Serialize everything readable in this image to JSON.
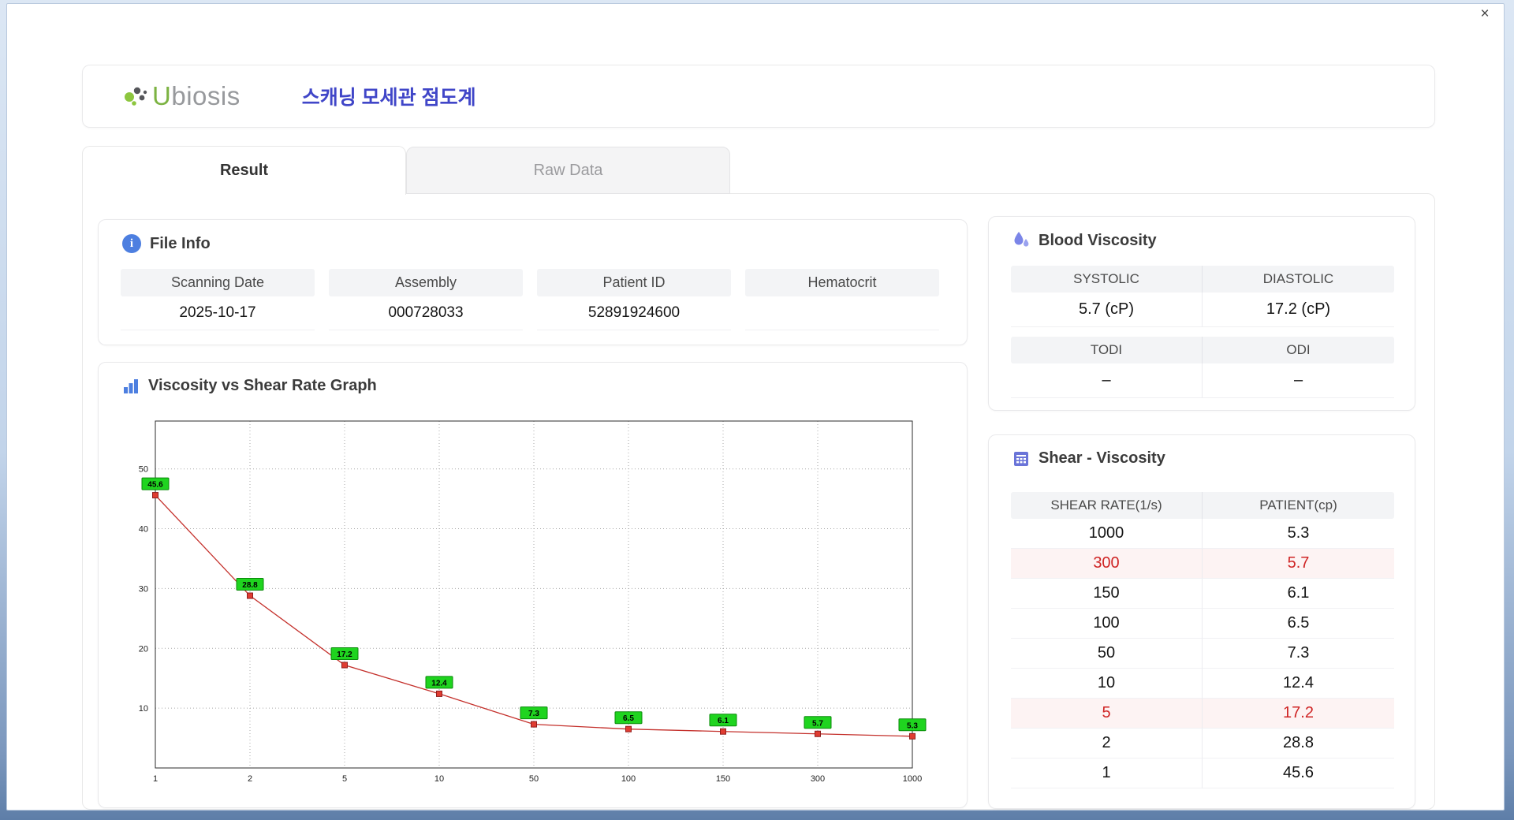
{
  "window": {
    "close_label": "×"
  },
  "header": {
    "logo_u": "U",
    "logo_rest": "biosis",
    "logo_text": "Ubiosis",
    "title": "스캐닝 모세관 점도계"
  },
  "tabs": [
    {
      "label": "Result",
      "active": true
    },
    {
      "label": "Raw Data",
      "active": false
    }
  ],
  "file_info": {
    "title": "File Info",
    "fields": [
      {
        "label": "Scanning Date",
        "value": "2025-10-17"
      },
      {
        "label": "Assembly",
        "value": "000728033"
      },
      {
        "label": "Patient ID",
        "value": "52891924600"
      },
      {
        "label": "Hematocrit",
        "value": ""
      }
    ]
  },
  "blood_viscosity": {
    "title": "Blood Viscosity",
    "systolic_label": "SYSTOLIC",
    "diastolic_label": "DIASTOLIC",
    "systolic_value": "5.7 (cP)",
    "diastolic_value": "17.2 (cP)",
    "todi_label": "TODI",
    "odi_label": "ODI",
    "todi_value": "–",
    "odi_value": "–"
  },
  "shear_viscosity": {
    "title": "Shear - Viscosity",
    "columns": [
      "SHEAR RATE(1/s)",
      "PATIENT(cp)"
    ],
    "rows": [
      {
        "shear_rate": "1000",
        "patient": "5.3",
        "highlight": false
      },
      {
        "shear_rate": "300",
        "patient": "5.7",
        "highlight": true
      },
      {
        "shear_rate": "150",
        "patient": "6.1",
        "highlight": false
      },
      {
        "shear_rate": "100",
        "patient": "6.5",
        "highlight": false
      },
      {
        "shear_rate": "50",
        "patient": "7.3",
        "highlight": false
      },
      {
        "shear_rate": "10",
        "patient": "12.4",
        "highlight": false
      },
      {
        "shear_rate": "5",
        "patient": "17.2",
        "highlight": true
      },
      {
        "shear_rate": "2",
        "patient": "28.8",
        "highlight": false
      },
      {
        "shear_rate": "1",
        "patient": "45.6",
        "highlight": false
      }
    ]
  },
  "chart_data": {
    "type": "line",
    "title": "Viscosity vs Shear Rate Graph",
    "xlabel": "",
    "ylabel": "",
    "categories": [
      "1",
      "2",
      "5",
      "10",
      "50",
      "100",
      "150",
      "300",
      "1000"
    ],
    "values": [
      45.6,
      28.8,
      17.2,
      12.4,
      7.3,
      6.5,
      6.1,
      5.7,
      5.3
    ],
    "y_ticks": [
      10,
      20,
      30,
      40,
      50
    ],
    "ylim": [
      0,
      58
    ],
    "x_scale": "category",
    "grid": true,
    "legend": "none",
    "line_color": "#c4302b",
    "marker": "square",
    "marker_color": "#e03c31",
    "point_label_bg": "#1fd41f",
    "highlight_color": "#cf2424",
    "accent_color": "#4046c8"
  }
}
